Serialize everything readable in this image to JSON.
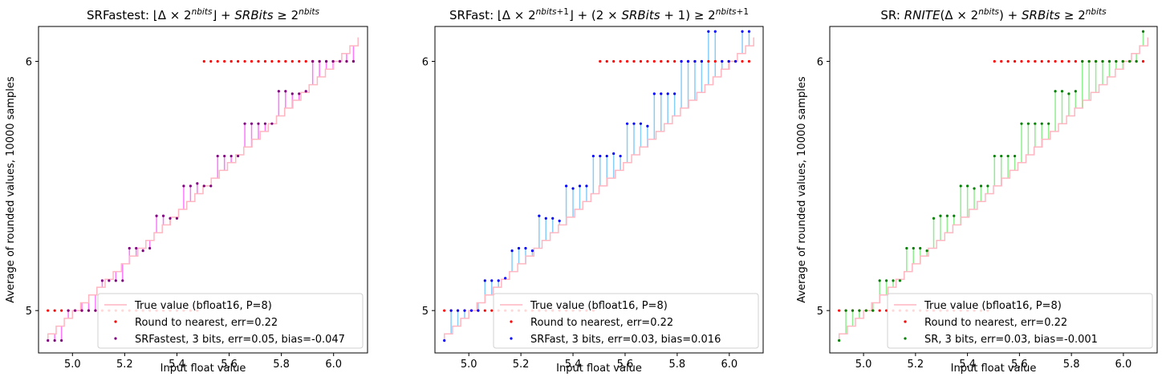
{
  "chart_data": [
    {
      "type": "line",
      "title": {
        "prefix": "SRFastest: ",
        "formula": "⌊Δ × 2^nbits⌋ + SRBits ≥ 2^nbits"
      },
      "xlabel": "Input float value",
      "ylabel": "Average of rounded values, 10000 samples",
      "xlim": [
        4.87,
        6.13
      ],
      "ylim": [
        4.83,
        6.14
      ],
      "xticks": [
        "5.0",
        "5.2",
        "5.4",
        "5.6",
        "5.8",
        "6.0"
      ],
      "yticks": [
        "5",
        "6"
      ],
      "legend_position": "lower right",
      "colors": {
        "true": "#ffb6c1",
        "nearest": "#ff0000",
        "method": "#800080",
        "stem": "#ff77ff"
      },
      "series": [
        {
          "name": "True value (bfloat16, P=8)",
          "kind": "step"
        },
        {
          "name": "Round to nearest, err=0.22",
          "kind": "points",
          "x": [
            4.906,
            4.932,
            4.958,
            4.984,
            5.01,
            5.036,
            5.062,
            5.088,
            5.114,
            5.14,
            5.166,
            5.192,
            5.218,
            5.244,
            5.27,
            5.296,
            5.322,
            5.348,
            5.374,
            5.4,
            5.426,
            5.452,
            5.478,
            5.504,
            5.53,
            5.556,
            5.582,
            5.608,
            5.634,
            5.66,
            5.686,
            5.712,
            5.738,
            5.764,
            5.79,
            5.816,
            5.842,
            5.868,
            5.894,
            5.92,
            5.946,
            5.972,
            5.998,
            6.024,
            6.05,
            6.076
          ],
          "y": [
            5,
            5,
            5,
            5,
            5,
            5,
            5,
            5,
            5,
            5,
            5,
            5,
            5,
            5,
            5,
            5,
            5,
            5,
            5,
            5,
            5,
            5,
            5,
            6,
            6,
            6,
            6,
            6,
            6,
            6,
            6,
            6,
            6,
            6,
            6,
            6,
            6,
            6,
            6,
            6,
            6,
            6,
            6,
            6,
            6,
            6
          ]
        },
        {
          "name": "SRFastest, 3 bits, err=0.05, bias=-0.047",
          "kind": "points",
          "x": [
            4.906,
            4.932,
            4.958,
            4.984,
            5.01,
            5.036,
            5.062,
            5.088,
            5.114,
            5.14,
            5.166,
            5.192,
            5.218,
            5.244,
            5.27,
            5.296,
            5.322,
            5.348,
            5.374,
            5.4,
            5.426,
            5.452,
            5.478,
            5.504,
            5.53,
            5.556,
            5.582,
            5.608,
            5.634,
            5.66,
            5.686,
            5.712,
            5.738,
            5.764,
            5.79,
            5.816,
            5.842,
            5.868,
            5.894,
            5.92,
            5.946,
            5.972,
            5.998,
            6.024,
            6.05,
            6.076
          ],
          "y": [
            4.88,
            4.88,
            4.88,
            5.0,
            5.0,
            5.0,
            5.0,
            5.0,
            5.12,
            5.12,
            5.12,
            5.12,
            5.25,
            5.25,
            5.24,
            5.25,
            5.38,
            5.38,
            5.37,
            5.37,
            5.5,
            5.5,
            5.51,
            5.5,
            5.5,
            5.62,
            5.62,
            5.62,
            5.62,
            5.75,
            5.75,
            5.75,
            5.75,
            5.75,
            5.88,
            5.88,
            5.87,
            5.87,
            5.88,
            6.0,
            6.0,
            6.0,
            6.0,
            6.0,
            6.0,
            6.0
          ]
        }
      ]
    },
    {
      "type": "line",
      "title": {
        "prefix": "SRFast: ",
        "formula": "⌊Δ × 2^(nbits+1)⌋ + (2 × SRBits + 1) ≥ 2^(nbits+1)"
      },
      "xlabel": "Input float value",
      "ylabel": "",
      "xlim": [
        4.87,
        6.13
      ],
      "ylim": [
        4.83,
        6.14
      ],
      "xticks": [
        "5.0",
        "5.2",
        "5.4",
        "5.6",
        "5.8",
        "6.0"
      ],
      "yticks": [
        "5",
        "6"
      ],
      "legend_position": "lower right",
      "colors": {
        "true": "#ffb6c1",
        "nearest": "#ff0000",
        "method": "#0000ff",
        "stem": "#87cefa"
      },
      "series": [
        {
          "name": "True value (bfloat16, P=8)",
          "kind": "step"
        },
        {
          "name": "Round to nearest, err=0.22",
          "kind": "points",
          "x": [
            4.906,
            4.932,
            4.958,
            4.984,
            5.01,
            5.036,
            5.062,
            5.088,
            5.114,
            5.14,
            5.166,
            5.192,
            5.218,
            5.244,
            5.27,
            5.296,
            5.322,
            5.348,
            5.374,
            5.4,
            5.426,
            5.452,
            5.478,
            5.504,
            5.53,
            5.556,
            5.582,
            5.608,
            5.634,
            5.66,
            5.686,
            5.712,
            5.738,
            5.764,
            5.79,
            5.816,
            5.842,
            5.868,
            5.894,
            5.92,
            5.946,
            5.972,
            5.998,
            6.024,
            6.05,
            6.076
          ],
          "y": [
            5,
            5,
            5,
            5,
            5,
            5,
            5,
            5,
            5,
            5,
            5,
            5,
            5,
            5,
            5,
            5,
            5,
            5,
            5,
            5,
            5,
            5,
            5,
            6,
            6,
            6,
            6,
            6,
            6,
            6,
            6,
            6,
            6,
            6,
            6,
            6,
            6,
            6,
            6,
            6,
            6,
            6,
            6,
            6,
            6,
            6
          ]
        },
        {
          "name": "SRFast, 3 bits, err=0.03, bias=0.016",
          "kind": "points",
          "x": [
            4.906,
            4.932,
            4.958,
            4.984,
            5.01,
            5.036,
            5.062,
            5.088,
            5.114,
            5.14,
            5.166,
            5.192,
            5.218,
            5.244,
            5.27,
            5.296,
            5.322,
            5.348,
            5.374,
            5.4,
            5.426,
            5.452,
            5.478,
            5.504,
            5.53,
            5.556,
            5.582,
            5.608,
            5.634,
            5.66,
            5.686,
            5.712,
            5.738,
            5.764,
            5.79,
            5.816,
            5.842,
            5.868,
            5.894,
            5.92,
            5.946,
            5.972,
            5.998,
            6.024,
            6.05,
            6.076
          ],
          "y": [
            4.88,
            5.0,
            5.0,
            5.0,
            5.0,
            5.0,
            5.12,
            5.12,
            5.12,
            5.13,
            5.24,
            5.25,
            5.25,
            5.24,
            5.38,
            5.37,
            5.37,
            5.36,
            5.5,
            5.49,
            5.5,
            5.5,
            5.62,
            5.62,
            5.62,
            5.63,
            5.62,
            5.75,
            5.75,
            5.75,
            5.74,
            5.87,
            5.87,
            5.87,
            5.87,
            6.0,
            6.0,
            6.0,
            6.0,
            6.12,
            6.12,
            6.0,
            6.0,
            6.0,
            6.12,
            6.12
          ]
        }
      ]
    },
    {
      "type": "line",
      "title": {
        "prefix": "SR: ",
        "formula": "RNITE(Δ × 2^nbits) + SRBits ≥ 2^nbits"
      },
      "xlabel": "Input float value",
      "ylabel": "Average of rounded values, 10000 samples",
      "xlim": [
        4.87,
        6.13
      ],
      "ylim": [
        4.83,
        6.14
      ],
      "xticks": [
        "5.0",
        "5.2",
        "5.4",
        "5.6",
        "5.8",
        "6.0"
      ],
      "yticks": [
        "5",
        "6"
      ],
      "legend_position": "lower right",
      "colors": {
        "true": "#ffb6c1",
        "nearest": "#ff0000",
        "method": "#008000",
        "stem": "#90ee90"
      },
      "series": [
        {
          "name": "True value (bfloat16, P=8)",
          "kind": "step"
        },
        {
          "name": "Round to nearest, err=0.22",
          "kind": "points",
          "x": [
            4.906,
            4.932,
            4.958,
            4.984,
            5.01,
            5.036,
            5.062,
            5.088,
            5.114,
            5.14,
            5.166,
            5.192,
            5.218,
            5.244,
            5.27,
            5.296,
            5.322,
            5.348,
            5.374,
            5.4,
            5.426,
            5.452,
            5.478,
            5.504,
            5.53,
            5.556,
            5.582,
            5.608,
            5.634,
            5.66,
            5.686,
            5.712,
            5.738,
            5.764,
            5.79,
            5.816,
            5.842,
            5.868,
            5.894,
            5.92,
            5.946,
            5.972,
            5.998,
            6.024,
            6.05,
            6.076
          ],
          "y": [
            5,
            5,
            5,
            5,
            5,
            5,
            5,
            5,
            5,
            5,
            5,
            5,
            5,
            5,
            5,
            5,
            5,
            5,
            5,
            5,
            5,
            5,
            5,
            6,
            6,
            6,
            6,
            6,
            6,
            6,
            6,
            6,
            6,
            6,
            6,
            6,
            6,
            6,
            6,
            6,
            6,
            6,
            6,
            6,
            6,
            6
          ]
        },
        {
          "name": "SR, 3 bits, err=0.03, bias=-0.001",
          "kind": "points",
          "x": [
            4.906,
            4.932,
            4.958,
            4.984,
            5.01,
            5.036,
            5.062,
            5.088,
            5.114,
            5.14,
            5.166,
            5.192,
            5.218,
            5.244,
            5.27,
            5.296,
            5.322,
            5.348,
            5.374,
            5.4,
            5.426,
            5.452,
            5.478,
            5.504,
            5.53,
            5.556,
            5.582,
            5.608,
            5.634,
            5.66,
            5.686,
            5.712,
            5.738,
            5.764,
            5.79,
            5.816,
            5.842,
            5.868,
            5.894,
            5.92,
            5.946,
            5.972,
            5.998,
            6.024,
            6.05,
            6.076
          ],
          "y": [
            4.88,
            5.0,
            5.0,
            5.0,
            5.0,
            5.0,
            5.12,
            5.12,
            5.12,
            5.12,
            5.25,
            5.25,
            5.25,
            5.24,
            5.37,
            5.38,
            5.38,
            5.38,
            5.5,
            5.5,
            5.49,
            5.5,
            5.5,
            5.62,
            5.62,
            5.62,
            5.62,
            5.75,
            5.75,
            5.75,
            5.75,
            5.75,
            5.88,
            5.88,
            5.87,
            5.88,
            6.0,
            6.0,
            6.0,
            6.0,
            6.0,
            6.0,
            6.0,
            6.0,
            6.0,
            6.12
          ]
        }
      ]
    }
  ]
}
